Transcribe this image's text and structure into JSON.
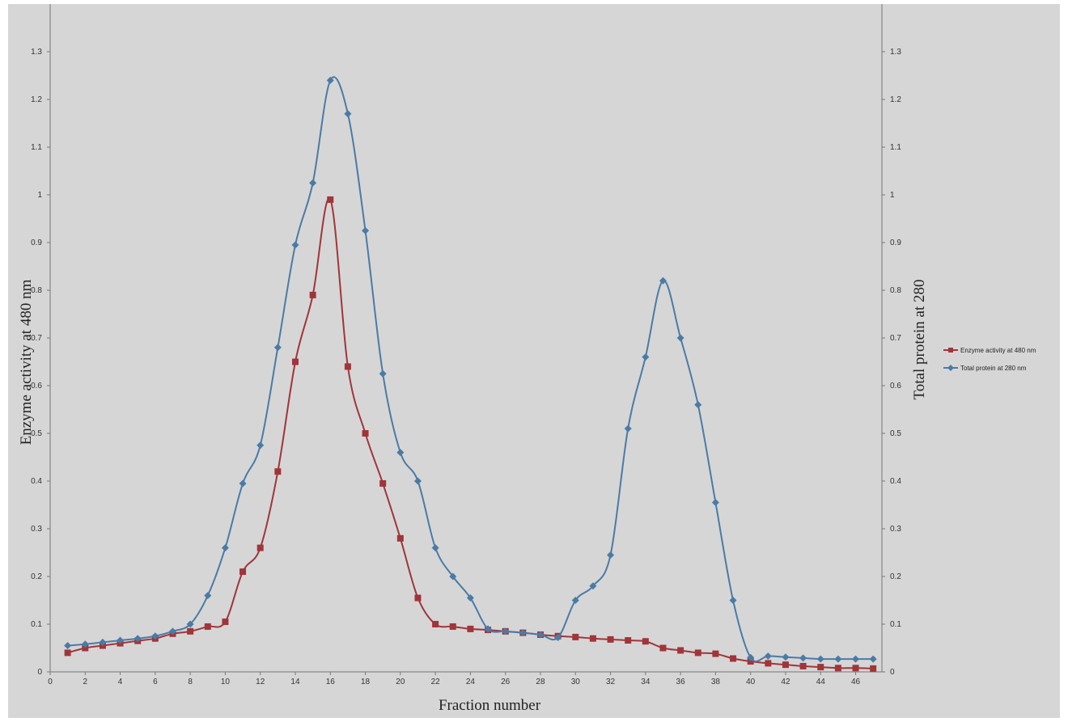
{
  "chart_data": {
    "type": "line",
    "xlabel": "Fraction number",
    "ylabel_left": "Enzyme activity at 480 nm",
    "ylabel_right": "Total protein at 280",
    "xlim": [
      0,
      47.5
    ],
    "ylim": [
      0,
      1.4
    ],
    "x_ticks": [
      "0",
      "2",
      "4",
      "6",
      "8",
      "10",
      "12",
      "14",
      "16",
      "18",
      "20",
      "22",
      "24",
      "26",
      "28",
      "30",
      "32",
      "34",
      "36",
      "38",
      "40",
      "42",
      "44",
      "46"
    ],
    "y_ticks": [
      "0",
      "0.1",
      "0.2",
      "0.3",
      "0.4",
      "0.5",
      "0.6",
      "0.7",
      "0.8",
      "0.9",
      "1",
      "1.1",
      "1.2",
      "1.3"
    ],
    "grid": false,
    "legend_position": "right",
    "series": [
      {
        "name": "Enzyme activity at 480 nm",
        "color": "#A0353A",
        "marker": "square",
        "x": [
          1,
          2,
          3,
          4,
          5,
          6,
          7,
          8,
          9,
          10,
          11,
          12,
          13,
          14,
          15,
          16,
          17,
          18,
          19,
          20,
          21,
          22,
          23,
          24,
          25,
          26,
          27,
          28,
          29,
          30,
          31,
          32,
          33,
          34,
          35,
          36,
          37,
          38,
          39,
          40,
          41,
          42,
          43,
          44,
          45,
          46,
          47
        ],
        "y": [
          0.04,
          0.05,
          0.055,
          0.06,
          0.065,
          0.07,
          0.08,
          0.085,
          0.095,
          0.105,
          0.21,
          0.26,
          0.42,
          0.65,
          0.79,
          0.99,
          0.64,
          0.5,
          0.395,
          0.28,
          0.155,
          0.1,
          0.095,
          0.09,
          0.088,
          0.085,
          0.082,
          0.078,
          0.075,
          0.073,
          0.07,
          0.068,
          0.066,
          0.064,
          0.05,
          0.045,
          0.04,
          0.038,
          0.028,
          0.022,
          0.018,
          0.015,
          0.012,
          0.01,
          0.008,
          0.008,
          0.007
        ]
      },
      {
        "name": "Total protein at 280 nm",
        "color": "#4A7BA6",
        "marker": "diamond",
        "x": [
          1,
          2,
          3,
          4,
          5,
          6,
          7,
          8,
          9,
          10,
          11,
          12,
          13,
          14,
          15,
          16,
          17,
          18,
          19,
          20,
          21,
          22,
          23,
          24,
          25,
          26,
          27,
          28,
          29,
          30,
          31,
          32,
          33,
          34,
          35,
          36,
          37,
          38,
          39,
          40,
          41,
          42,
          43,
          44,
          45,
          46,
          47
        ],
        "y": [
          0.055,
          0.058,
          0.062,
          0.066,
          0.07,
          0.075,
          0.085,
          0.1,
          0.16,
          0.26,
          0.395,
          0.475,
          0.68,
          0.895,
          1.025,
          1.24,
          1.17,
          0.925,
          0.625,
          0.46,
          0.4,
          0.26,
          0.2,
          0.155,
          0.09,
          0.085,
          0.082,
          0.078,
          0.072,
          0.15,
          0.18,
          0.245,
          0.51,
          0.66,
          0.82,
          0.7,
          0.56,
          0.355,
          0.15,
          0.03,
          0.033,
          0.031,
          0.029,
          0.027,
          0.027,
          0.027,
          0.027
        ]
      }
    ]
  }
}
